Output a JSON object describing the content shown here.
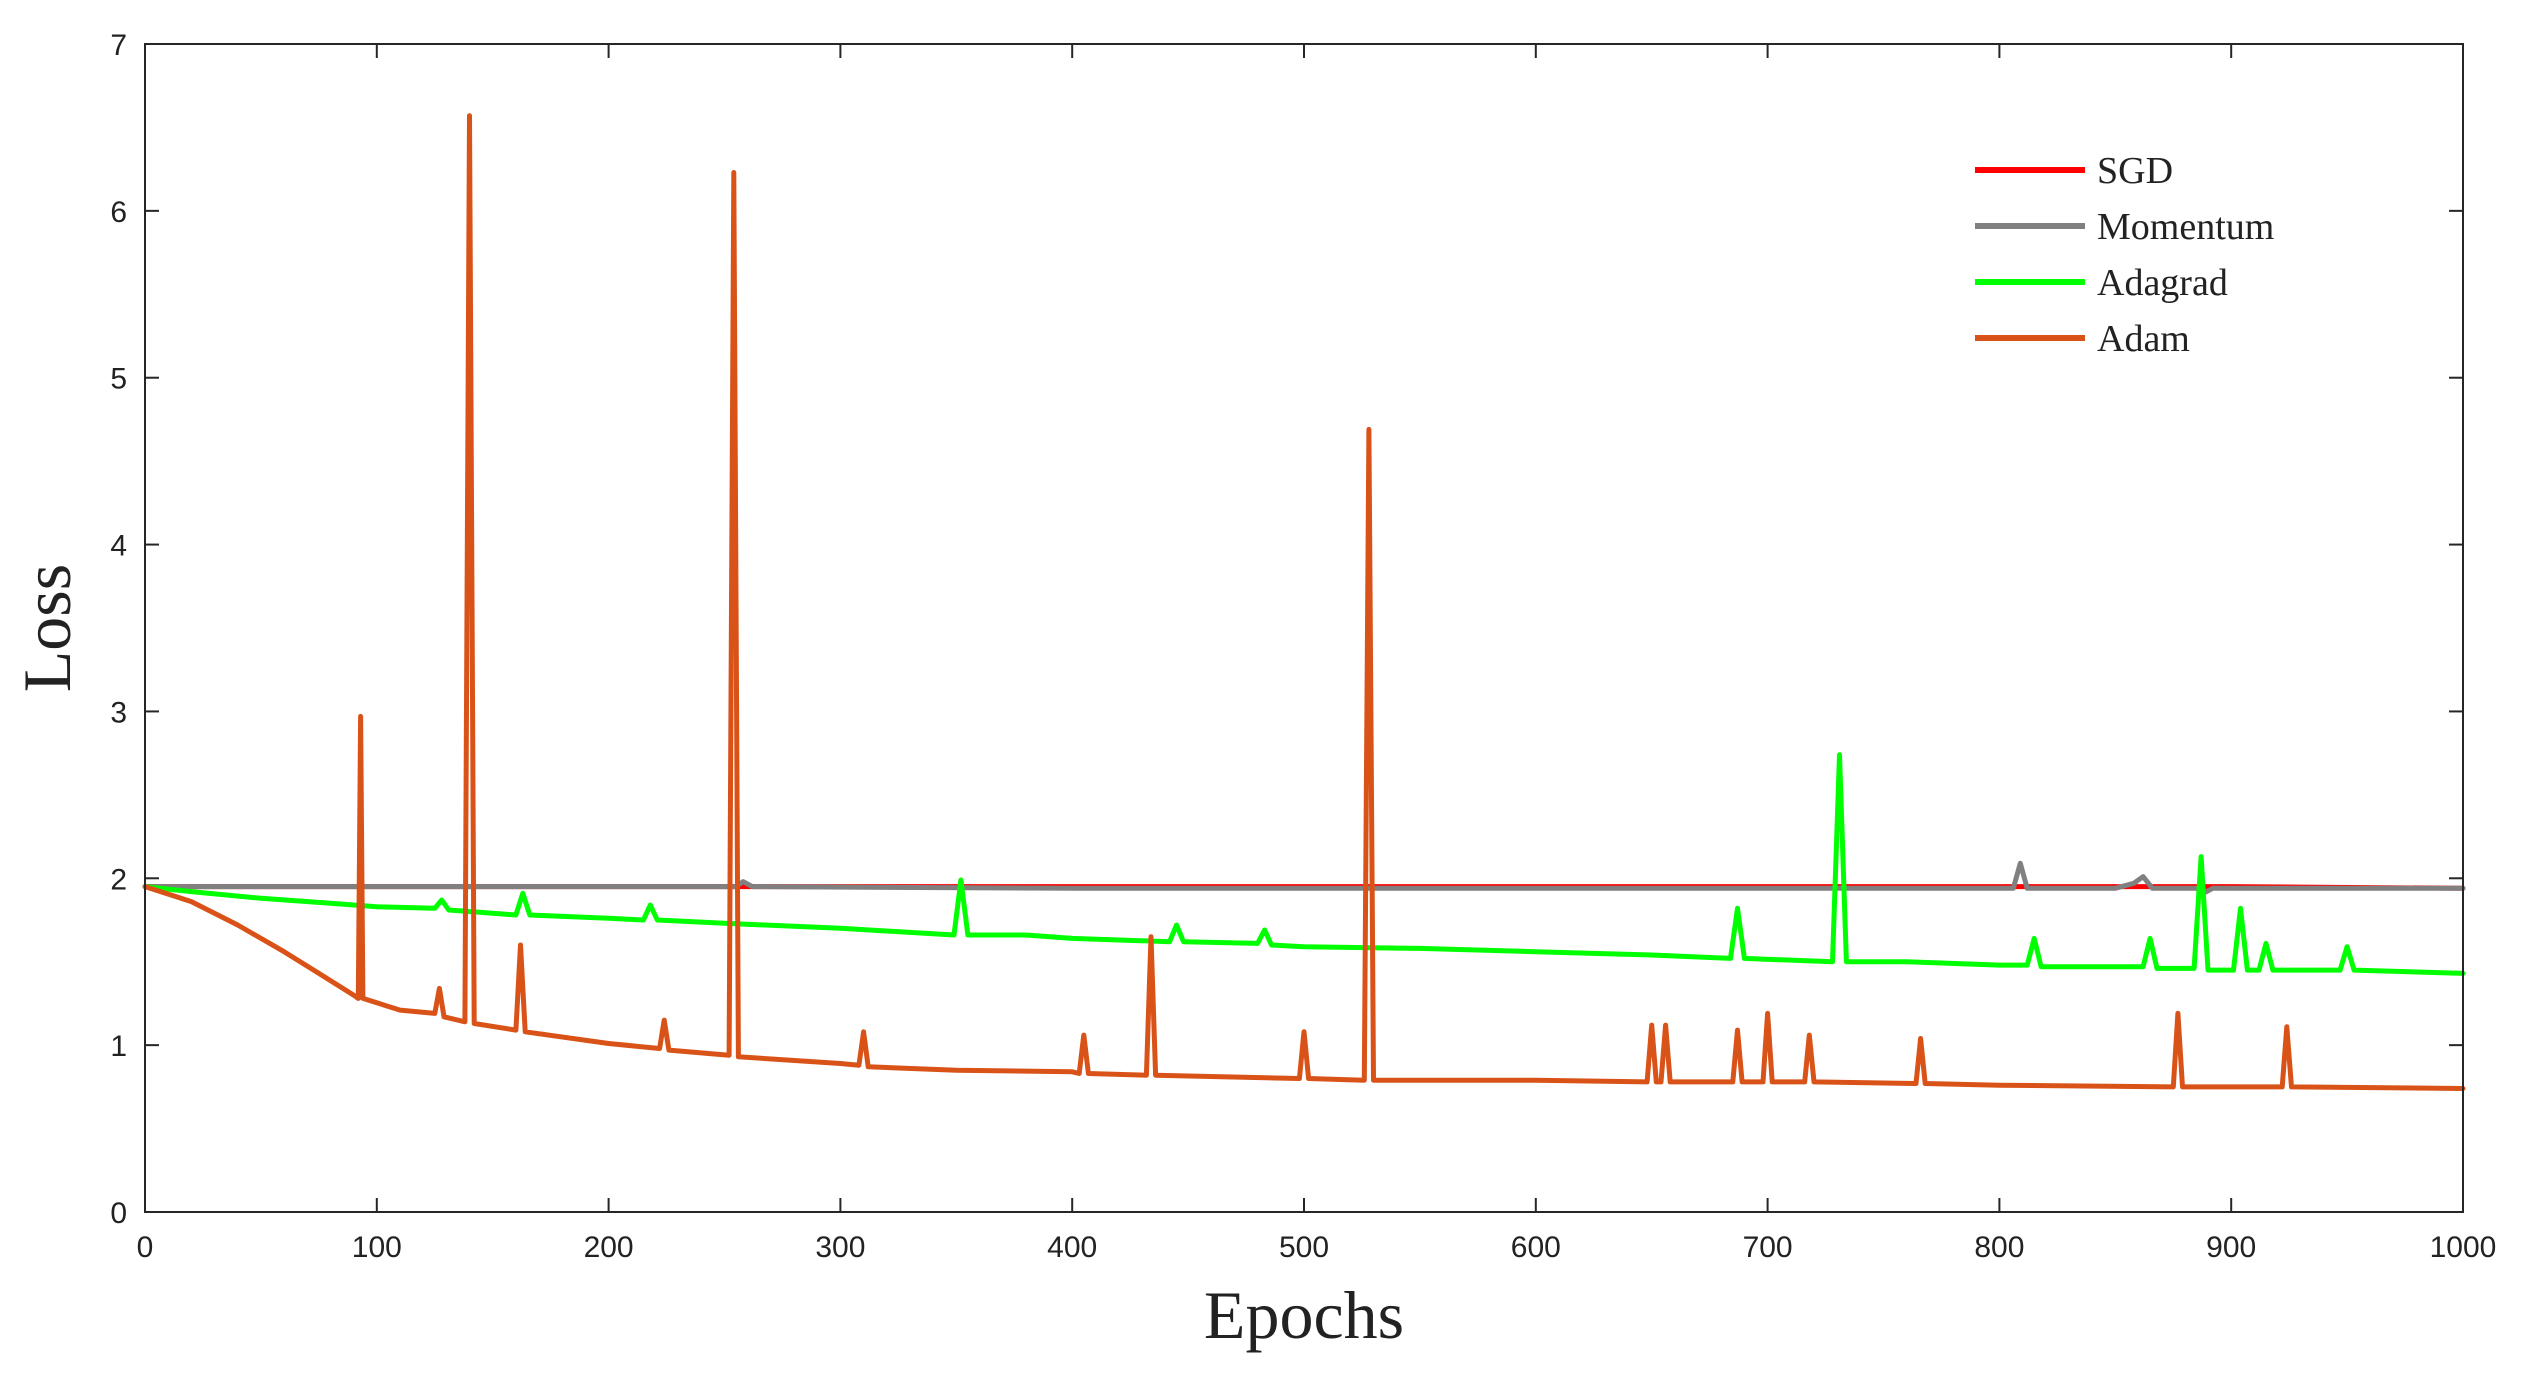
{
  "chart_data": {
    "type": "line",
    "xlabel": "Epochs",
    "ylabel": "Loss",
    "xlim": [
      0,
      1000
    ],
    "ylim": [
      0,
      7
    ],
    "xticks": [
      "0",
      "100",
      "200",
      "300",
      "400",
      "500",
      "600",
      "700",
      "800",
      "900",
      "1000"
    ],
    "yticks": [
      "0",
      "1",
      "2",
      "3",
      "4",
      "5",
      "6",
      "7"
    ],
    "grid": false,
    "legend_position": "top-right",
    "series": [
      {
        "name": "SGD",
        "color": "#ff0000",
        "points": [
          [
            0,
            1.95
          ],
          [
            100,
            1.95
          ],
          [
            200,
            1.95
          ],
          [
            300,
            1.95
          ],
          [
            400,
            1.95
          ],
          [
            500,
            1.95
          ],
          [
            600,
            1.95
          ],
          [
            700,
            1.95
          ],
          [
            800,
            1.95
          ],
          [
            900,
            1.95
          ],
          [
            1000,
            1.94
          ]
        ]
      },
      {
        "name": "Momentum",
        "color": "#808080",
        "points": [
          [
            0,
            1.95
          ],
          [
            100,
            1.95
          ],
          [
            200,
            1.95
          ],
          [
            255,
            1.95
          ],
          [
            258,
            1.98
          ],
          [
            262,
            1.95
          ],
          [
            400,
            1.94
          ],
          [
            600,
            1.94
          ],
          [
            800,
            1.94
          ],
          [
            806,
            1.94
          ],
          [
            809,
            2.09
          ],
          [
            812,
            1.94
          ],
          [
            850,
            1.94
          ],
          [
            858,
            1.97
          ],
          [
            862,
            2.01
          ],
          [
            866,
            1.94
          ],
          [
            885,
            1.94
          ],
          [
            888,
            1.91
          ],
          [
            892,
            1.94
          ],
          [
            1000,
            1.94
          ]
        ]
      },
      {
        "name": "Adagrad",
        "color": "#00ff00",
        "points": [
          [
            0,
            1.95
          ],
          [
            20,
            1.92
          ],
          [
            50,
            1.88
          ],
          [
            80,
            1.85
          ],
          [
            100,
            1.83
          ],
          [
            125,
            1.82
          ],
          [
            128,
            1.87
          ],
          [
            131,
            1.81
          ],
          [
            150,
            1.79
          ],
          [
            160,
            1.78
          ],
          [
            163,
            1.91
          ],
          [
            166,
            1.78
          ],
          [
            200,
            1.76
          ],
          [
            215,
            1.75
          ],
          [
            218,
            1.84
          ],
          [
            221,
            1.75
          ],
          [
            250,
            1.73
          ],
          [
            300,
            1.7
          ],
          [
            349,
            1.66
          ],
          [
            352,
            1.99
          ],
          [
            355,
            1.66
          ],
          [
            380,
            1.66
          ],
          [
            400,
            1.64
          ],
          [
            442,
            1.62
          ],
          [
            445,
            1.72
          ],
          [
            448,
            1.62
          ],
          [
            480,
            1.61
          ],
          [
            483,
            1.69
          ],
          [
            486,
            1.6
          ],
          [
            500,
            1.59
          ],
          [
            550,
            1.58
          ],
          [
            600,
            1.56
          ],
          [
            650,
            1.54
          ],
          [
            684,
            1.52
          ],
          [
            687,
            1.82
          ],
          [
            690,
            1.52
          ],
          [
            728,
            1.5
          ],
          [
            731,
            2.74
          ],
          [
            734,
            1.5
          ],
          [
            760,
            1.5
          ],
          [
            800,
            1.48
          ],
          [
            812,
            1.48
          ],
          [
            815,
            1.64
          ],
          [
            818,
            1.47
          ],
          [
            850,
            1.47
          ],
          [
            862,
            1.47
          ],
          [
            865,
            1.64
          ],
          [
            868,
            1.46
          ],
          [
            884,
            1.46
          ],
          [
            887,
            2.13
          ],
          [
            890,
            1.45
          ],
          [
            901,
            1.45
          ],
          [
            904,
            1.82
          ],
          [
            907,
            1.45
          ],
          [
            912,
            1.45
          ],
          [
            915,
            1.61
          ],
          [
            918,
            1.45
          ],
          [
            947,
            1.45
          ],
          [
            950,
            1.59
          ],
          [
            953,
            1.45
          ],
          [
            1000,
            1.43
          ]
        ]
      },
      {
        "name": "Adam",
        "color": "#d95319",
        "points": [
          [
            0,
            1.95
          ],
          [
            20,
            1.86
          ],
          [
            40,
            1.72
          ],
          [
            60,
            1.56
          ],
          [
            75,
            1.43
          ],
          [
            90,
            1.3
          ],
          [
            92,
            1.28
          ],
          [
            93,
            2.97
          ],
          [
            94,
            1.28
          ],
          [
            110,
            1.21
          ],
          [
            125,
            1.19
          ],
          [
            127,
            1.34
          ],
          [
            129,
            1.17
          ],
          [
            138,
            1.14
          ],
          [
            140,
            6.57
          ],
          [
            142,
            1.13
          ],
          [
            160,
            1.09
          ],
          [
            162,
            1.6
          ],
          [
            164,
            1.08
          ],
          [
            200,
            1.01
          ],
          [
            222,
            0.98
          ],
          [
            224,
            1.15
          ],
          [
            226,
            0.97
          ],
          [
            252,
            0.94
          ],
          [
            254,
            6.23
          ],
          [
            256,
            0.93
          ],
          [
            300,
            0.89
          ],
          [
            308,
            0.88
          ],
          [
            310,
            1.08
          ],
          [
            312,
            0.87
          ],
          [
            350,
            0.85
          ],
          [
            400,
            0.84
          ],
          [
            403,
            0.83
          ],
          [
            405,
            1.06
          ],
          [
            407,
            0.83
          ],
          [
            432,
            0.82
          ],
          [
            434,
            1.65
          ],
          [
            436,
            0.82
          ],
          [
            498,
            0.8
          ],
          [
            500,
            1.08
          ],
          [
            502,
            0.8
          ],
          [
            526,
            0.79
          ],
          [
            528,
            4.69
          ],
          [
            530,
            0.79
          ],
          [
            600,
            0.79
          ],
          [
            648,
            0.78
          ],
          [
            650,
            1.12
          ],
          [
            652,
            0.78
          ],
          [
            654,
            0.78
          ],
          [
            656,
            1.12
          ],
          [
            658,
            0.78
          ],
          [
            685,
            0.78
          ],
          [
            687,
            1.09
          ],
          [
            689,
            0.78
          ],
          [
            698,
            0.78
          ],
          [
            700,
            1.19
          ],
          [
            702,
            0.78
          ],
          [
            716,
            0.78
          ],
          [
            718,
            1.06
          ],
          [
            720,
            0.78
          ],
          [
            764,
            0.77
          ],
          [
            766,
            1.04
          ],
          [
            768,
            0.77
          ],
          [
            800,
            0.76
          ],
          [
            875,
            0.75
          ],
          [
            877,
            1.19
          ],
          [
            879,
            0.75
          ],
          [
            922,
            0.75
          ],
          [
            924,
            1.11
          ],
          [
            926,
            0.75
          ],
          [
            1000,
            0.74
          ]
        ]
      }
    ]
  }
}
